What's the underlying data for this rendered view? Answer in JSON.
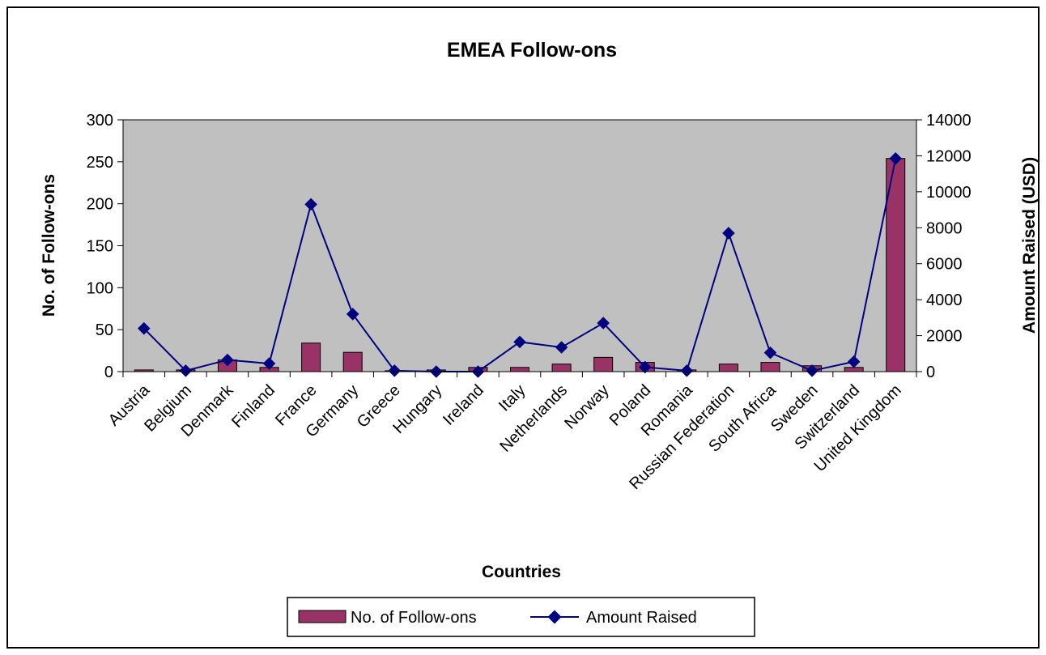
{
  "chart_data": {
    "type": "bar",
    "title": "EMEA Follow-ons",
    "xlabel": "Countries",
    "ylabel": "No. of Follow-ons",
    "y2label": "Amount Raised (USD)",
    "categories": [
      "Austria",
      "Belgium",
      "Denmark",
      "Finland",
      "France",
      "Germany",
      "Greece",
      "Hungary",
      "Ireland",
      "Italy",
      "Netherlands",
      "Norway",
      "Poland",
      "Romania",
      "Russian Federation",
      "South Africa",
      "Sweden",
      "Switzerland",
      "United Kingdom"
    ],
    "series": [
      {
        "name": "No. of Follow-ons",
        "type": "bar",
        "axis": "left",
        "color": "#993366",
        "values": [
          2,
          2,
          14,
          5,
          34,
          23,
          1,
          2,
          5,
          5,
          9,
          17,
          11,
          2,
          9,
          11,
          7,
          5,
          254
        ]
      },
      {
        "name": "Amount Raised",
        "type": "line",
        "axis": "right",
        "color": "#000080",
        "values": [
          2400,
          50,
          650,
          450,
          9300,
          3200,
          50,
          0,
          0,
          1650,
          1350,
          2700,
          250,
          50,
          7700,
          1050,
          50,
          550,
          11850
        ]
      }
    ],
    "yticks": [
      0,
      50,
      100,
      150,
      200,
      250,
      300
    ],
    "y2ticks": [
      0,
      2000,
      4000,
      6000,
      8000,
      10000,
      12000,
      14000
    ],
    "ylim": [
      0,
      300
    ],
    "y2lim": [
      0,
      14000
    ],
    "plot_background": "#C0C0C0",
    "grid": false,
    "legend_position": "bottom"
  }
}
